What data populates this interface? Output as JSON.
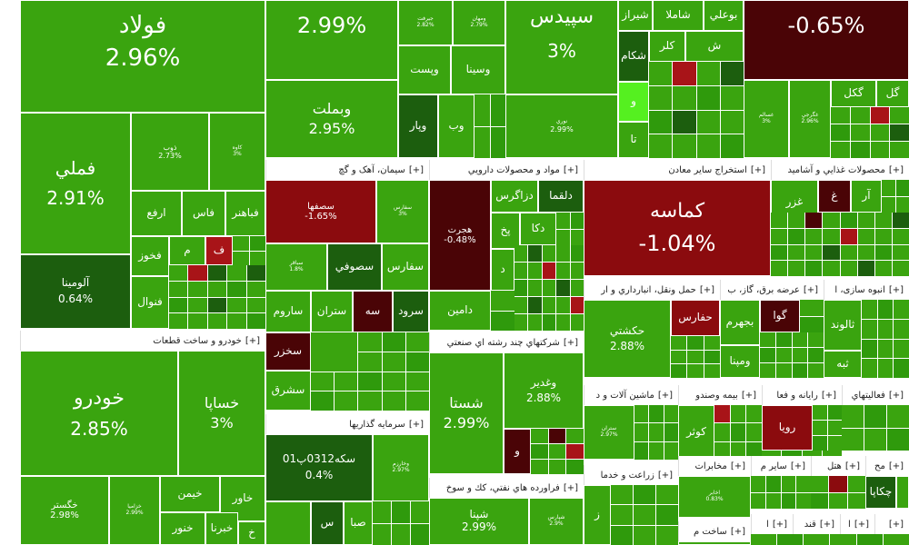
{
  "colors": {
    "green": "#3aa40f",
    "dark_green": "#1c5e0e",
    "light_green": "#55f020",
    "red": "#8b0b0e",
    "dark_red": "#4a0406"
  },
  "top": {
    "folad": {
      "name": "فولاد",
      "pct": "2.96%"
    },
    "cell2": {
      "pct": "2.99%"
    },
    "wabmellat": {
      "name": "وبملت",
      "pct": "2.95%"
    },
    "vasina": "وسينا",
    "vpest": "وپست",
    "vbim": "وب",
    "vpar": "وپار",
    "small1": "جيرفت",
    "small1p": "2.82%",
    "small2": "ومهان",
    "small2p": "2.79%",
    "sepidis": {
      "name": "سپيدس",
      "pct": "3%"
    },
    "shiraz": "شيراز",
    "shamala": "شاملا",
    "bouli": "بوعلي",
    "shakam": "شكام",
    "kal": "كلر",
    "sh": "ش",
    "noori": "نوري",
    "noori_p": "2.99%",
    "ta": "تا",
    "va": "و",
    "dark_red": {
      "pct": "-0.65%"
    },
    "gakal": "گكل",
    "gol": "گل",
    "small3": "غسالم",
    "small3p": "3%",
    "small4": "غگرجي",
    "small4p": "2.96%"
  },
  "left": {
    "fameli": {
      "name": "فملي",
      "pct": "2.91%"
    },
    "zob": {
      "name": "ذوب",
      "pct": "2.73%"
    },
    "kave": {
      "name": "کاوه",
      "pct": "3%"
    },
    "arfa": "ارفع",
    "fas": "فاس",
    "fabahonar": "فباهنر",
    "fakhuz": "فخوز",
    "fanval": "فنوال",
    "fam": "م",
    "fa": "ف",
    "alumina": {
      "name": "آلومينا",
      "pct": "0.64%"
    }
  },
  "sections": {
    "auto": {
      "title": "خودرو و ساخت قطعات",
      "plus": "[+]"
    },
    "cement": {
      "title": "سيمان، آهک و گچ",
      "plus": "[+]"
    },
    "pharma": {
      "title": "مواد و محصولات دارويي",
      "plus": "[+]"
    },
    "mining": {
      "title": "استخراج ساير معادن",
      "plus": "[+]"
    },
    "food": {
      "title": "محصولات غذايي و آشاميد",
      "plus": "[+]"
    },
    "holding": {
      "title": "شركتهاي چند رشته اي صنعتي",
      "plus": "[+]"
    },
    "investment": {
      "title": "سرمايه گذاريها",
      "plus": "[+]"
    },
    "transport": {
      "title": "حمل ونقل، انبارداري و ار",
      "plus": "[+]"
    },
    "power": {
      "title": "عرضه برق، گاز، ب",
      "plus": "[+]"
    },
    "mass": {
      "title": "انبوه سازی، ا",
      "plus": "[+]"
    },
    "machinery": {
      "title": "ماشين آلات و د",
      "plus": "[+]"
    },
    "retail": {
      "title": "بيمه وصندو",
      "plus": "[+]"
    },
    "computer": {
      "title": "رايانه و فعا",
      "plus": "[+]"
    },
    "activities": {
      "title": "فعاليتهاي",
      "plus": "[+]"
    },
    "oil": {
      "title": "فراورده هاي نفتي، كك و سوخ",
      "plus": "[+]"
    },
    "agri": {
      "title": "زراعت و خدما",
      "plus": "[+]"
    },
    "telecom": {
      "title": "مخابرات",
      "plus": "[+]"
    },
    "others": {
      "title": "ساير م",
      "plus": "[+]"
    },
    "hotel": {
      "title": "هتل",
      "plus": "[+]"
    },
    "mass2": {
      "title": "مح",
      "plus": "[+]"
    },
    "build": {
      "title": "ساخت م",
      "plus": "[+]"
    },
    "s1": {
      "title": "ا",
      "plus": "[+]"
    },
    "s2": {
      "title": "قند",
      "plus": "[+]"
    },
    "s3": {
      "title": "ا",
      "plus": "[+]"
    },
    "s4": {
      "title": "[+]"
    }
  },
  "auto": {
    "khodro": {
      "name": "خودرو",
      "pct": "2.85%"
    },
    "khsapa": {
      "name": "خساپا",
      "pct": "3%"
    },
    "khgostar": {
      "name": "خگستر",
      "pct": "2.98%"
    },
    "khzamia": {
      "name": "خزاميا",
      "pct": "2.99%"
    },
    "kheiman": "خيمن",
    "khavar": "خاور",
    "khodrou": "خنور",
    "khebrana": "خبرنا",
    "kh": "خ"
  },
  "cement": {
    "sofaha": {
      "name": "سصفها",
      "pct": "-1.65%"
    },
    "s_small": "سفارس",
    "s_small_p": "3%",
    "sofars": "سفارس",
    "sofi": "سصوفي",
    "sabah": "سباقر",
    "sabah_p": "1.8%",
    "sarum": "ساروم",
    "sotran": "ستران",
    "sahe": "سه",
    "sarud": "سرود",
    "skhzar": "سخزر",
    "sasharq": "سشرق",
    "s": "س"
  },
  "pharma": {
    "hejrat": {
      "name": "هجرت",
      "pct": "-0.48%"
    },
    "dzagros": "دزاگرس",
    "dalqma": "دلقما",
    "dka": "دکا",
    "dpakh": "پخ",
    "d": "د",
    "damin": "دامين"
  },
  "mining": {
    "kamase": {
      "name": "كماسه",
      "pct": "-1.04%"
    }
  },
  "food": {
    "ghazar": "غزر",
    "gh": "غ",
    "ar": "آر"
  },
  "holding": {
    "shasta": {
      "name": "شستا",
      "pct": "2.99%"
    },
    "vaghadir": {
      "name": "وغدير",
      "pct": "2.88%"
    },
    "va": "و"
  },
  "investment": {
    "seke": {
      "name": "سکه0312پ01",
      "pct": "0.4%"
    },
    "vakharazm": "وخارزم",
    "vakharazm_p": "2.97%",
    "saba": "صبا",
    "s": "س"
  },
  "transport": {
    "hakshti": {
      "name": "حكشتي",
      "pct": "2.88%"
    },
    "hafars": "حفارس"
  },
  "power": {
    "bjahrom": "بجهرم",
    "bmapna": "ومپنا",
    "bga": "گوا"
  },
  "mass": {
    "saland": "ثالوند",
    "tabe": "ثبه"
  },
  "machinery": {
    "small": "ستران",
    "small_p": "2.97%"
  },
  "retail": {
    "kowsar": "كوثر"
  },
  "computer": {
    "rouya": "رويا"
  },
  "oil": {
    "shepna": "شپنا",
    "pct": "2.99%",
    "small": "شپارس",
    "small_p": "2.9%"
  },
  "agri": {
    "z": "ز"
  },
  "telecom": {
    "small": "اخابر",
    "small_p": "0.83%"
  },
  "mass2": {
    "chekapa": "چكاپا"
  }
}
